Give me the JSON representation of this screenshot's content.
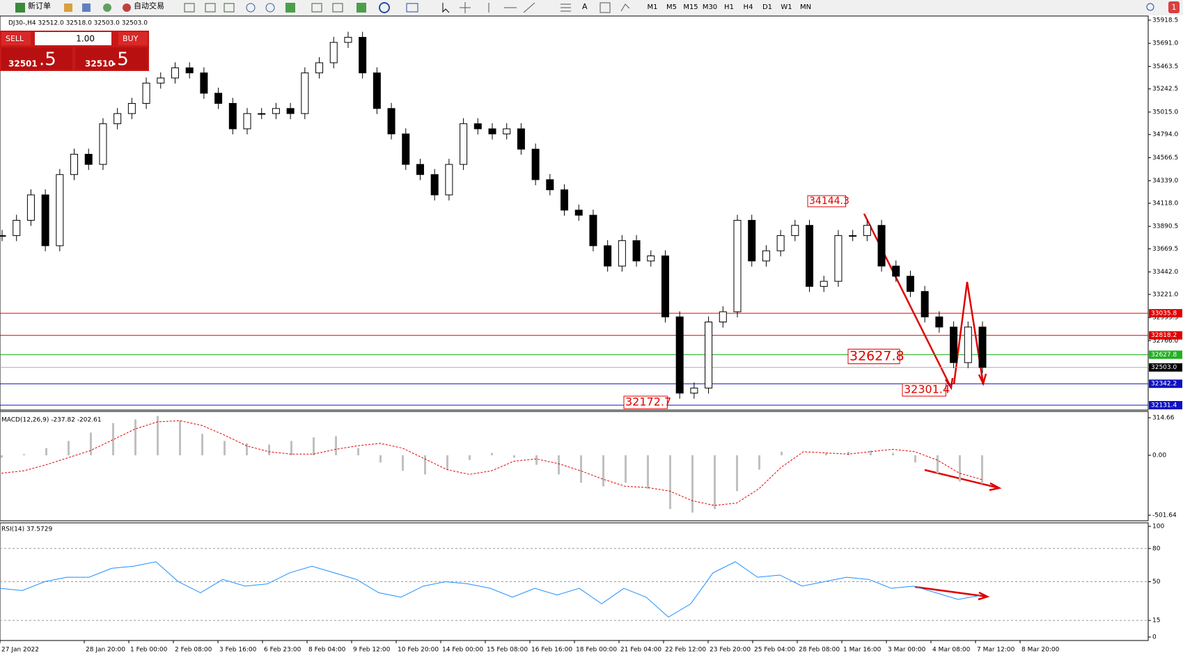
{
  "toolbar": {
    "new_order": "新订单",
    "auto_trading": "自动交易",
    "text_tool": "A",
    "timeframes": [
      "M1",
      "M5",
      "M15",
      "M30",
      "H1",
      "H4",
      "D1",
      "W1",
      "MN"
    ],
    "alert_count": "1"
  },
  "chart_header": "DJ30-,H4  32512.0 32518.0 32503.0 32503.0",
  "trade_panel": {
    "sell": "SELL",
    "buy": "BUY",
    "lots": "1.00",
    "bid": "32501",
    "bid_frac": ".5",
    "ask": "32510",
    "ask_frac": ".5"
  },
  "chart_data": [
    {
      "type": "candlestick",
      "ylim": [
        32131.4,
        35918.5
      ],
      "yticks": [
        {
          "value": 35918.5,
          "label": "35918.5"
        },
        {
          "value": 35691,
          "label": "35691.0"
        },
        {
          "value": 35463.5,
          "label": "35463.5"
        },
        {
          "value": 35242.5,
          "label": "35242.5"
        },
        {
          "value": 35015,
          "label": "35015.0"
        },
        {
          "value": 34794,
          "label": "34794.0"
        },
        {
          "value": 34566.5,
          "label": "34566.5"
        },
        {
          "value": 34339,
          "label": "34339.0"
        },
        {
          "value": 34118,
          "label": "34118.0"
        },
        {
          "value": 33890.5,
          "label": "33890.5"
        },
        {
          "value": 33669.5,
          "label": "33669.5"
        },
        {
          "value": 33442,
          "label": "33442.0"
        },
        {
          "value": 33221,
          "label": "33221.0"
        },
        {
          "value": 32993.5,
          "label": "32993.5"
        },
        {
          "value": 32766,
          "label": "32766.0"
        }
      ],
      "closes": [
        33800,
        33950,
        34200,
        33700,
        34400,
        34600,
        34500,
        34900,
        35000,
        35100,
        35300,
        35350,
        35450,
        35400,
        35200,
        35100,
        34850,
        35000,
        35000,
        35050,
        35000,
        35400,
        35500,
        35700,
        35750,
        35400,
        35050,
        34800,
        34500,
        34400,
        34200,
        34500,
        34900,
        34850,
        34800,
        34850,
        34650,
        34350,
        34250,
        34050,
        34000,
        33700,
        33500,
        33750,
        33550,
        33600,
        33000,
        32250,
        32300,
        32950,
        33050,
        33950,
        33550,
        33650,
        33800,
        33900,
        33300,
        33350,
        33800,
        33800,
        33900,
        33500,
        33400,
        33250,
        33000,
        32900,
        32550,
        32900,
        32503
      ],
      "levels": [
        {
          "value": 33035.8,
          "color": "#e00000"
        },
        {
          "value": 32818.2,
          "color": "#e00000"
        },
        {
          "value": 32627.8,
          "color": "#22b022"
        },
        {
          "value": 32503,
          "label": "32503.0",
          "color": "#000000"
        },
        {
          "value": 32342.2,
          "color": "#1010c0"
        },
        {
          "value": 32131.4,
          "color": "#1010c0"
        }
      ],
      "annotations": [
        "34144.3",
        "32627.8",
        "32301.4",
        "32172.7"
      ]
    },
    {
      "type": "macd",
      "title": "MACD(12,26,9) -237.82 -202.61",
      "ylim": [
        -501.64,
        314.66
      ],
      "yticks": [
        314.66,
        {
          "value": 0,
          "label": "0.00"
        },
        -501.64
      ],
      "histogram": [
        -20,
        10,
        60,
        120,
        190,
        270,
        300,
        330,
        290,
        180,
        120,
        100,
        90,
        120,
        150,
        160,
        60,
        -60,
        -130,
        -160,
        -120,
        -40,
        20,
        -20,
        -80,
        -160,
        -230,
        -260,
        -230,
        -280,
        -450,
        -480,
        -450,
        -300,
        -120,
        30,
        0,
        20,
        30,
        40,
        20,
        -60,
        -150,
        -220,
        -237.82
      ],
      "signal": [
        -150,
        -130,
        -80,
        -20,
        40,
        130,
        220,
        280,
        290,
        250,
        170,
        80,
        30,
        10,
        10,
        50,
        80,
        100,
        60,
        -30,
        -120,
        -160,
        -130,
        -50,
        -30,
        -70,
        -130,
        -200,
        -260,
        -270,
        -300,
        -380,
        -420,
        -400,
        -280,
        -100,
        30,
        20,
        10,
        30,
        50,
        30,
        -40,
        -150,
        -202.61
      ]
    },
    {
      "type": "rsi",
      "title": "RSI(14) 37.5729",
      "ylim": [
        0,
        100
      ],
      "yticks": [
        100,
        80,
        50,
        15,
        0
      ],
      "levels": [
        80,
        50,
        15
      ],
      "values": [
        44,
        42,
        50,
        54,
        54,
        62,
        64,
        68,
        50,
        40,
        52,
        46,
        48,
        58,
        64,
        58,
        52,
        40,
        36,
        46,
        50,
        48,
        44,
        36,
        44,
        38,
        44,
        30,
        44,
        36,
        18,
        30,
        58,
        68,
        54,
        56,
        46,
        50,
        54,
        52,
        44,
        46,
        40,
        34,
        37.5729
      ]
    }
  ],
  "time_labels": [
    "27 Jan 2022",
    "28 Jan 20:00",
    "1 Feb 00:00",
    "2 Feb 08:00",
    "3 Feb 16:00",
    "6 Feb 23:00",
    "8 Feb 04:00",
    "9 Feb 12:00",
    "10 Feb 20:00",
    "14 Feb 00:00",
    "15 Feb 08:00",
    "16 Feb 16:00",
    "18 Feb 00:00",
    "21 Feb 04:00",
    "22 Feb 12:00",
    "23 Feb 20:00",
    "25 Feb 04:00",
    "28 Feb 08:00",
    "1 Mar 16:00",
    "3 Mar 00:00",
    "4 Mar 08:00",
    "7 Mar 12:00",
    "8 Mar 20:00"
  ]
}
